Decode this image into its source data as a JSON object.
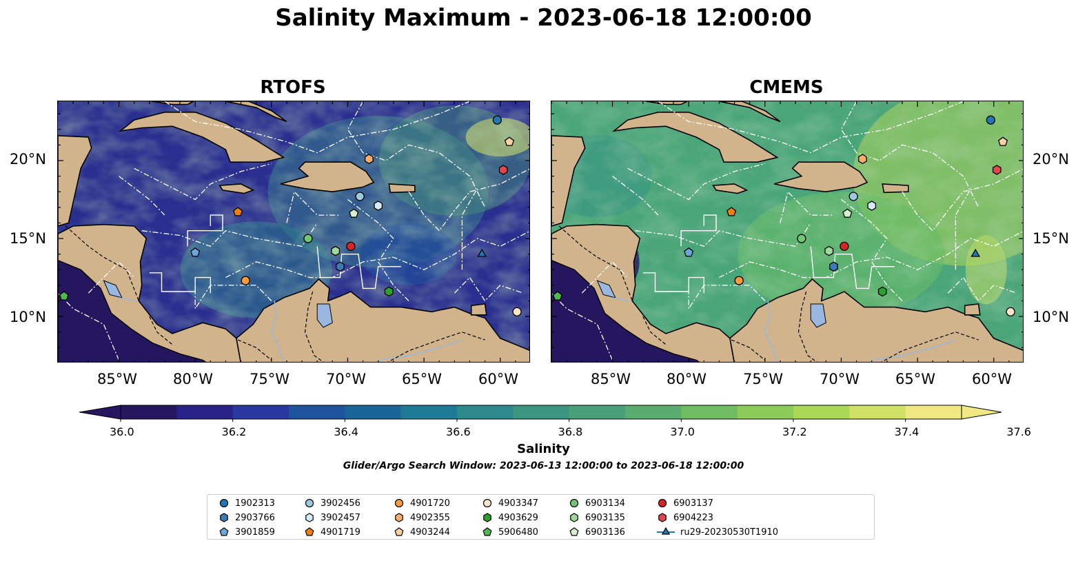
{
  "figure": {
    "title": "Salinity Maximum - 2023-06-18 12:00:00",
    "colorbar_label": "Salinity",
    "search_window": "Glider/Argo Search Window: 2023-06-13 12:00:00 to 2023-06-18 12:00:00"
  },
  "panels": [
    {
      "title": "RTOFS",
      "dominant": "#2a2f8f",
      "accent": "#3b8b8c",
      "bright": "#79c66a"
    },
    {
      "title": "CMEMS",
      "dominant": "#4aa579",
      "accent": "#6cbf63",
      "bright": "#c0df56"
    }
  ],
  "axes": {
    "lon_ticks": [
      "85°W",
      "80°W",
      "75°W",
      "70°W",
      "65°W",
      "60°W"
    ],
    "lat_ticks": [
      "20°N",
      "15°N",
      "10°N"
    ]
  },
  "colorbar": {
    "ticks": [
      "36.0",
      "36.2",
      "36.4",
      "36.6",
      "36.8",
      "37.0",
      "37.2",
      "37.4",
      "37.6"
    ],
    "colors": [
      "#24165f",
      "#292289",
      "#2a39a1",
      "#20539d",
      "#19659a",
      "#1f7a96",
      "#2d8a8c",
      "#3b9581",
      "#4aa078",
      "#5bad6f",
      "#6fbc62",
      "#8ccb58",
      "#aad856",
      "#cfe265",
      "#f1e883"
    ]
  },
  "legend": [
    {
      "label": "1902313",
      "marker": "circle",
      "color": "#1f77b4"
    },
    {
      "label": "2903766",
      "marker": "hexagon",
      "color": "#3d7ab8"
    },
    {
      "label": "3901859",
      "marker": "pentagon",
      "color": "#6aa8dc"
    },
    {
      "label": "3902456",
      "marker": "circle",
      "color": "#9ecae1"
    },
    {
      "label": "3902457",
      "marker": "hexagon",
      "color": "#d6eaf8"
    },
    {
      "label": "4901719",
      "marker": "pentagon",
      "color": "#f07f12"
    },
    {
      "label": "4901720",
      "marker": "circle",
      "color": "#fd9a3c"
    },
    {
      "label": "4902355",
      "marker": "hexagon",
      "color": "#fdae6b"
    },
    {
      "label": "4903244",
      "marker": "pentagon",
      "color": "#fdd0a2"
    },
    {
      "label": "4903347",
      "marker": "circle",
      "color": "#fde5cc"
    },
    {
      "label": "4903629",
      "marker": "hexagon",
      "color": "#2ca02c"
    },
    {
      "label": "5906480",
      "marker": "pentagon",
      "color": "#4cba4c"
    },
    {
      "label": "6903134",
      "marker": "circle",
      "color": "#74c476"
    },
    {
      "label": "6903135",
      "marker": "hexagon",
      "color": "#a1d99b"
    },
    {
      "label": "6903136",
      "marker": "pentagon",
      "color": "#d4f0cf"
    },
    {
      "label": "6903137",
      "marker": "circle",
      "color": "#d62728"
    },
    {
      "label": "6904223",
      "marker": "hexagon",
      "color": "#e0474c"
    },
    {
      "label": "ru29-20230530T1910",
      "marker": "triangle-line",
      "color": "#1f77b4"
    }
  ],
  "markers": [
    {
      "id": "1902313",
      "lon": -60.2,
      "lat": 22.6
    },
    {
      "id": "6904223",
      "lon": -59.8,
      "lat": 19.4
    },
    {
      "id": "4903244",
      "lon": -59.4,
      "lat": 21.2
    },
    {
      "id": "4902355",
      "lon": -68.6,
      "lat": 20.1
    },
    {
      "id": "3902456",
      "lon": -69.2,
      "lat": 17.7
    },
    {
      "id": "3902457",
      "lon": -68.0,
      "lat": 17.1
    },
    {
      "id": "6903136",
      "lon": -69.6,
      "lat": 16.6
    },
    {
      "id": "4901719",
      "lon": -77.2,
      "lat": 16.7
    },
    {
      "id": "6903134",
      "lon": -72.6,
      "lat": 15.0
    },
    {
      "id": "6903135",
      "lon": -70.8,
      "lat": 14.2
    },
    {
      "id": "6903137",
      "lon": -69.8,
      "lat": 14.5
    },
    {
      "id": "2903766",
      "lon": -70.5,
      "lat": 13.2
    },
    {
      "id": "3901859",
      "lon": -80.0,
      "lat": 14.1
    },
    {
      "id": "4901720",
      "lon": -76.7,
      "lat": 12.3
    },
    {
      "id": "4903629",
      "lon": -67.3,
      "lat": 11.6
    },
    {
      "id": "5906480",
      "lon": -88.6,
      "lat": 11.3
    },
    {
      "id": "4903347",
      "lon": -58.9,
      "lat": 10.3
    },
    {
      "id": "ru29-20230530T1910",
      "lon": -61.2,
      "lat": 14.0
    }
  ]
}
